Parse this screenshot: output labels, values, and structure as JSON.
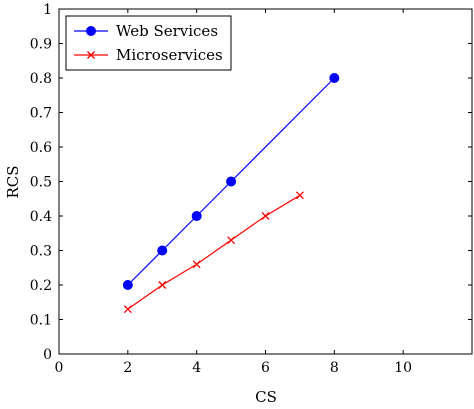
{
  "chart_data": {
    "type": "line",
    "title": "",
    "xlabel": "CS",
    "ylabel": "RCS",
    "xlim": [
      0,
      12
    ],
    "ylim": [
      0,
      1
    ],
    "xticks": [
      0,
      2,
      4,
      6,
      8,
      10
    ],
    "yticks": [
      0,
      0.1,
      0.2,
      0.3,
      0.4,
      0.5,
      0.6,
      0.7,
      0.8,
      0.9,
      1
    ],
    "grid": false,
    "legend_position": "top-left",
    "series": [
      {
        "name": "Web Services",
        "color": "#0000ff",
        "marker": "circle",
        "points": [
          {
            "x": 2,
            "y": 0.2
          },
          {
            "x": 3,
            "y": 0.3
          },
          {
            "x": 4,
            "y": 0.4
          },
          {
            "x": 5,
            "y": 0.5
          },
          {
            "x": 8,
            "y": 0.8
          }
        ]
      },
      {
        "name": "Microservices",
        "color": "#ff0000",
        "marker": "cross",
        "points": [
          {
            "x": 2,
            "y": 0.13
          },
          {
            "x": 3,
            "y": 0.2
          },
          {
            "x": 4,
            "y": 0.26
          },
          {
            "x": 5,
            "y": 0.33
          },
          {
            "x": 6,
            "y": 0.4
          },
          {
            "x": 7,
            "y": 0.46
          }
        ]
      }
    ]
  }
}
